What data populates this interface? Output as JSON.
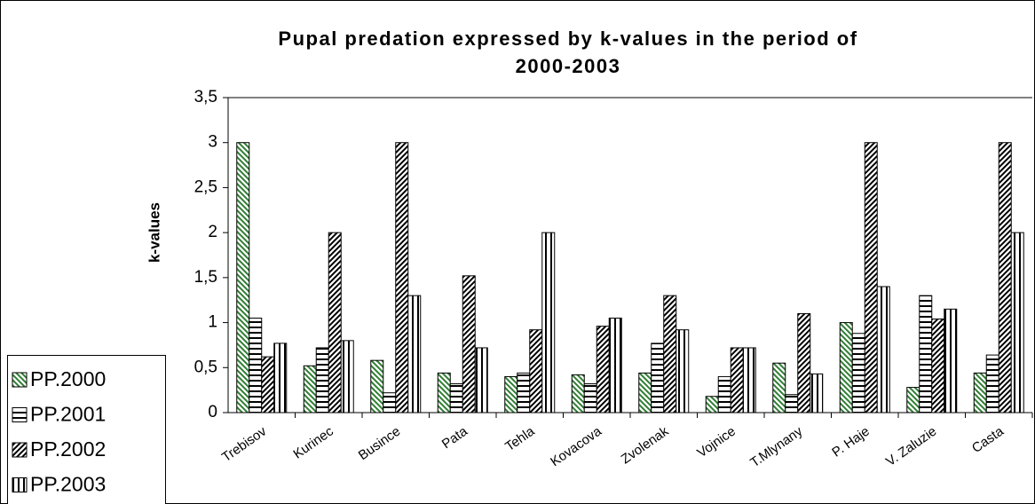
{
  "chart_data": {
    "type": "bar",
    "title": [
      "Pupal predation expressed by k-values in the period of",
      "2000-2003"
    ],
    "y_label": "k-values",
    "categories": [
      "Trebisov",
      "Kurinec",
      "Busince",
      "Pata",
      "Tehla",
      "Kovacova",
      "Zvolenak",
      "Vojnice",
      "T.Mlynany",
      "P. Haje",
      "V. Zaluzie",
      "Casta"
    ],
    "series": [
      {
        "name": "PP.2000",
        "color": "#2e7d32",
        "pattern": "backslash",
        "values": [
          3.0,
          0.52,
          0.58,
          0.44,
          0.4,
          0.42,
          0.44,
          0.18,
          0.55,
          1.0,
          0.28,
          0.44
        ]
      },
      {
        "name": "PP.2001",
        "color": "#000000",
        "pattern": "horizontal",
        "values": [
          1.05,
          0.72,
          0.22,
          0.32,
          0.44,
          0.32,
          0.77,
          0.4,
          0.2,
          0.88,
          1.3,
          0.64
        ]
      },
      {
        "name": "PP.2002",
        "color": "#000000",
        "pattern": "slash",
        "values": [
          0.62,
          2.0,
          3.0,
          1.52,
          0.92,
          0.96,
          1.3,
          0.72,
          1.1,
          3.0,
          1.04,
          3.0
        ]
      },
      {
        "name": "PP.2003",
        "color": "#000000",
        "pattern": "vertical",
        "values": [
          0.77,
          0.8,
          1.3,
          0.72,
          2.0,
          1.05,
          0.92,
          0.72,
          0.43,
          1.4,
          1.15,
          2.0
        ]
      }
    ],
    "ylim": [
      0,
      3.5
    ],
    "yticks": [
      0,
      {
        "value": 0.5,
        "label": "0,5"
      },
      1,
      {
        "value": 1.5,
        "label": "1,5"
      },
      2,
      {
        "value": 2.5,
        "label": "2,5"
      },
      3,
      {
        "value": 3.5,
        "label": "3,5"
      }
    ],
    "grid": false,
    "legend": "bottom-left"
  }
}
